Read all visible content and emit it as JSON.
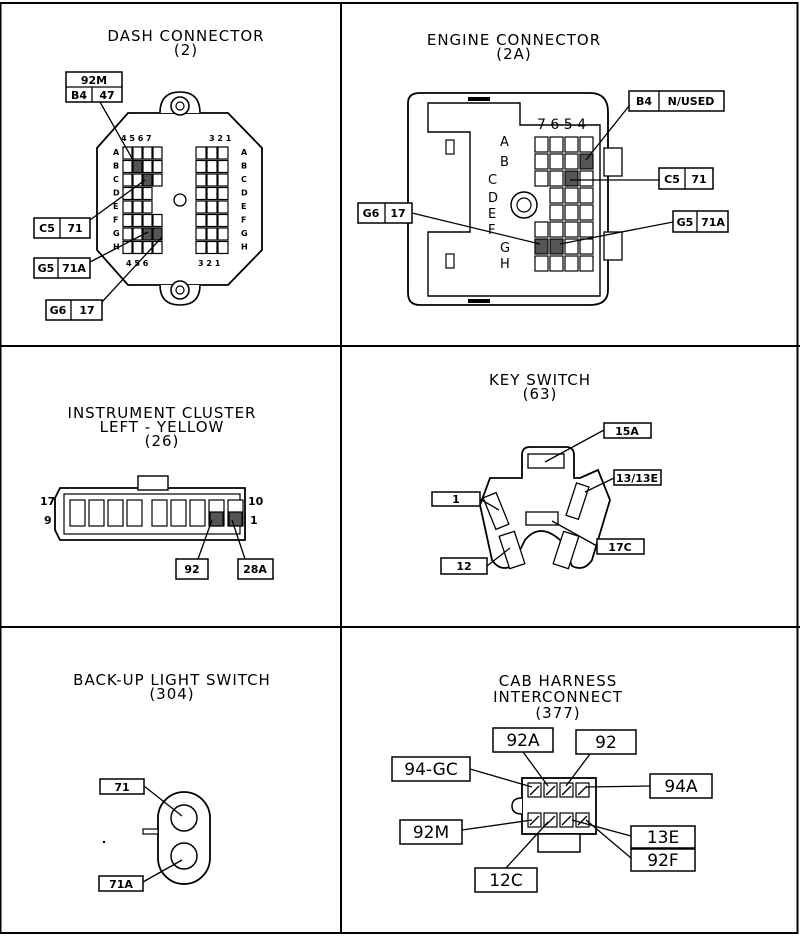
{
  "panels": {
    "dash": {
      "title": "DASH CONNECTOR",
      "number": "(2)",
      "cols_top": "4 5 6 7",
      "cols_top_right": "3 2 1",
      "cols_bottom": "4 5 6",
      "cols_bottom_right": "3 2 1",
      "rows": [
        "A",
        "B",
        "C",
        "D",
        "E",
        "F",
        "G",
        "H"
      ],
      "top_callout": "92M",
      "labels": [
        {
          "pin": "B4",
          "wire": "47"
        },
        {
          "pin": "C5",
          "wire": "71"
        },
        {
          "pin": "G5",
          "wire": "71A"
        },
        {
          "pin": "G6",
          "wire": "17"
        }
      ]
    },
    "engine": {
      "title": "ENGINE CONNECTOR",
      "number": "(2A)",
      "cols": "7 6 5 4",
      "rows": [
        "A",
        "B",
        "C",
        "D",
        "E",
        "F",
        "G",
        "H"
      ],
      "labels": [
        {
          "pin": "B4",
          "wire": "N/USED"
        },
        {
          "pin": "C5",
          "wire": "71"
        },
        {
          "pin": "G6",
          "wire": "17"
        },
        {
          "pin": "G5",
          "wire": "71A"
        }
      ]
    },
    "cluster": {
      "title_1": "INSTRUMENT CLUSTER",
      "title_2": "LEFT - YELLOW",
      "number": "(26)",
      "pin_17": "17",
      "pin_9": "9",
      "pin_10": "10",
      "pin_1": "1",
      "labels": [
        "92",
        "28A"
      ]
    },
    "key": {
      "title": "KEY SWITCH",
      "number": "(63)",
      "labels": [
        "15A",
        "13/13E",
        "1",
        "17C",
        "12"
      ]
    },
    "backup": {
      "title": "BACK-UP LIGHT SWITCH",
      "number": "(304)",
      "labels": [
        "71",
        "71A"
      ]
    },
    "cab": {
      "title_1": "CAB HARNESS",
      "title_2": "INTERCONNECT",
      "number": "(377)",
      "labels": [
        "92A",
        "92",
        "94-GC",
        "94A",
        "92M",
        "13E",
        "92F",
        "12C"
      ]
    }
  }
}
